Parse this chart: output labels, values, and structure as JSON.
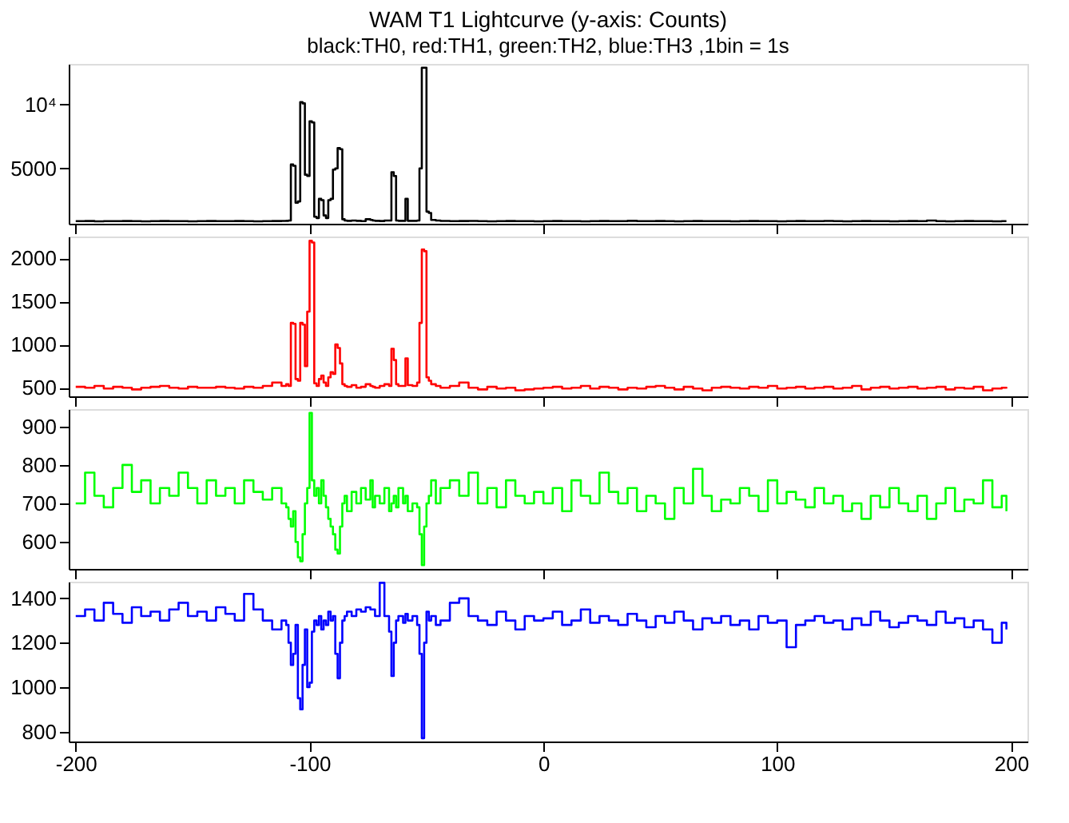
{
  "chart_data": [
    {
      "type": "step",
      "title": "WAM T1 Lightcurve (y-axis: Counts)",
      "subtitle": "black:TH0, red:TH1, green:TH2, blue:TH3 ,1bin = 1s",
      "tick_labels": "y",
      "grid": false,
      "xlim": [
        -203,
        207
      ],
      "xticks": [
        -200,
        -100,
        0,
        100,
        200
      ],
      "ylim": [
        650,
        13200
      ],
      "yticks": [
        5000,
        {
          "value": 10000,
          "label": "10⁴"
        }
      ],
      "x": [
        -200,
        -196,
        -192,
        -188,
        -184,
        -180,
        -176,
        -172,
        -168,
        -164,
        -160,
        -156,
        -152,
        -148,
        -144,
        -140,
        -136,
        -132,
        -128,
        -124,
        -120,
        -116,
        -112,
        -110,
        -109,
        -108,
        -107,
        -106,
        -105,
        -104,
        -103,
        -102,
        -101,
        -100,
        -99,
        -98,
        -97,
        -96,
        -95,
        -94,
        -93,
        -92,
        -91,
        -90,
        -89,
        -88,
        -87,
        -86,
        -85,
        -84,
        -82,
        -80,
        -78,
        -76,
        -74,
        -73,
        -72,
        -70,
        -68,
        -66,
        -65,
        -64,
        -63,
        -62,
        -60,
        -59,
        -58,
        -56,
        -54,
        -53,
        -52,
        -51,
        -50,
        -49,
        -48,
        -46,
        -44,
        -40,
        -36,
        -32,
        -28,
        -24,
        -20,
        -16,
        -12,
        -8,
        -4,
        0,
        4,
        8,
        12,
        16,
        20,
        24,
        28,
        32,
        36,
        40,
        44,
        48,
        52,
        56,
        60,
        64,
        68,
        72,
        76,
        80,
        84,
        88,
        92,
        96,
        100,
        104,
        108,
        112,
        116,
        120,
        124,
        128,
        132,
        136,
        140,
        144,
        148,
        152,
        156,
        160,
        164,
        168,
        172,
        176,
        180,
        184,
        188,
        192,
        196,
        198
      ],
      "series": [
        {
          "color": "#000000",
          "values": [
            850,
            860,
            840,
            850,
            850,
            860,
            850,
            840,
            850,
            860,
            850,
            850,
            840,
            850,
            860,
            850,
            850,
            860,
            850,
            840,
            850,
            860,
            870,
            880,
            900,
            5300,
            5200,
            2300,
            2400,
            10200,
            10100,
            4500,
            4400,
            8700,
            8600,
            1200,
            1100,
            2600,
            2500,
            1300,
            1100,
            2500,
            2600,
            4900,
            5000,
            6600,
            6500,
            1000,
            900,
            880,
            900,
            880,
            850,
            1000,
            950,
            900,
            880,
            860,
            900,
            900,
            4700,
            4400,
            900,
            880,
            880,
            2600,
            880,
            880,
            900,
            5000,
            12900,
            12900,
            1600,
            1500,
            950,
            900,
            870,
            850,
            860,
            870,
            850,
            840,
            850,
            860,
            850,
            850,
            840,
            850,
            860,
            850,
            850,
            840,
            850,
            860,
            850,
            850,
            880,
            850,
            850,
            860,
            850,
            840,
            850,
            860,
            850,
            850,
            850,
            840,
            850,
            860,
            850,
            850,
            840,
            850,
            860,
            850,
            850,
            870,
            850,
            840,
            850,
            860,
            850,
            850,
            840,
            850,
            860,
            850,
            900,
            850,
            840,
            850,
            860,
            850,
            850,
            840,
            850,
            850
          ]
        }
      ]
    },
    {
      "type": "step",
      "tick_labels": "y",
      "grid": false,
      "xlim": [
        -203,
        207
      ],
      "xticks": [
        -200,
        -100,
        0,
        100,
        200
      ],
      "ylim": [
        400,
        2250
      ],
      "yticks": [
        500,
        1000,
        1500,
        2000
      ],
      "x": [
        -200,
        -196,
        -192,
        -188,
        -184,
        -180,
        -176,
        -172,
        -168,
        -164,
        -160,
        -156,
        -152,
        -148,
        -144,
        -140,
        -136,
        -132,
        -128,
        -124,
        -120,
        -116,
        -112,
        -110,
        -109,
        -108,
        -107,
        -106,
        -105,
        -104,
        -103,
        -102,
        -101,
        -100,
        -99,
        -98,
        -97,
        -96,
        -95,
        -94,
        -93,
        -92,
        -91,
        -90,
        -89,
        -88,
        -87,
        -86,
        -85,
        -84,
        -82,
        -80,
        -78,
        -76,
        -74,
        -73,
        -72,
        -70,
        -68,
        -66,
        -65,
        -64,
        -63,
        -62,
        -60,
        -59,
        -58,
        -56,
        -54,
        -53,
        -52,
        -51,
        -50,
        -49,
        -48,
        -46,
        -44,
        -40,
        -36,
        -32,
        -28,
        -24,
        -20,
        -16,
        -12,
        -8,
        -4,
        0,
        4,
        8,
        12,
        16,
        20,
        24,
        28,
        32,
        36,
        40,
        44,
        48,
        52,
        56,
        60,
        64,
        68,
        72,
        76,
        80,
        84,
        88,
        92,
        96,
        100,
        104,
        108,
        112,
        116,
        120,
        124,
        128,
        132,
        136,
        140,
        144,
        148,
        152,
        156,
        160,
        164,
        168,
        172,
        176,
        180,
        184,
        188,
        192,
        196,
        198
      ],
      "series": [
        {
          "color": "#ff0000",
          "values": [
            510,
            500,
            520,
            490,
            510,
            500,
            480,
            500,
            510,
            520,
            500,
            490,
            510,
            500,
            500,
            510,
            500,
            490,
            510,
            500,
            520,
            560,
            520,
            540,
            520,
            1250,
            1240,
            600,
            580,
            1250,
            1230,
            750,
            1380,
            2200,
            2180,
            550,
            520,
            600,
            640,
            560,
            520,
            620,
            680,
            660,
            1000,
            960,
            780,
            540,
            520,
            510,
            530,
            500,
            510,
            540,
            520,
            510,
            500,
            520,
            540,
            520,
            950,
            820,
            540,
            520,
            520,
            840,
            530,
            520,
            560,
            1250,
            2100,
            2080,
            620,
            580,
            540,
            520,
            500,
            520,
            560,
            500,
            480,
            510,
            490,
            500,
            470,
            480,
            490,
            500,
            510,
            490,
            500,
            520,
            490,
            510,
            500,
            480,
            500,
            490,
            510,
            520,
            500,
            480,
            510,
            490,
            470,
            500,
            510,
            500,
            490,
            510,
            500,
            520,
            490,
            500,
            510,
            490,
            500,
            510,
            490,
            500,
            520,
            480,
            500,
            510,
            490,
            500,
            510,
            490,
            500,
            510,
            480,
            500,
            490,
            510,
            470,
            490,
            500,
            490
          ]
        }
      ]
    },
    {
      "type": "step",
      "tick_labels": "y",
      "grid": false,
      "xlim": [
        -203,
        207
      ],
      "xticks": [
        -200,
        -100,
        0,
        100,
        200
      ],
      "ylim": [
        530,
        945
      ],
      "yticks": [
        600,
        700,
        800,
        900
      ],
      "x": [
        -200,
        -196,
        -192,
        -188,
        -184,
        -180,
        -176,
        -172,
        -168,
        -164,
        -160,
        -156,
        -152,
        -148,
        -144,
        -140,
        -136,
        -132,
        -128,
        -124,
        -120,
        -116,
        -112,
        -110,
        -109,
        -108,
        -107,
        -106,
        -105,
        -104,
        -103,
        -102,
        -101,
        -100,
        -99,
        -98,
        -97,
        -96,
        -95,
        -94,
        -93,
        -92,
        -91,
        -90,
        -89,
        -88,
        -87,
        -86,
        -85,
        -84,
        -82,
        -80,
        -78,
        -76,
        -74,
        -73,
        -72,
        -70,
        -68,
        -66,
        -65,
        -64,
        -63,
        -62,
        -60,
        -59,
        -58,
        -56,
        -54,
        -53,
        -52,
        -51,
        -50,
        -49,
        -48,
        -46,
        -44,
        -40,
        -36,
        -32,
        -28,
        -24,
        -20,
        -16,
        -12,
        -8,
        -4,
        0,
        4,
        8,
        12,
        16,
        20,
        24,
        28,
        32,
        36,
        40,
        44,
        48,
        52,
        56,
        60,
        64,
        68,
        72,
        76,
        80,
        84,
        88,
        92,
        96,
        100,
        104,
        108,
        112,
        116,
        120,
        124,
        128,
        132,
        136,
        140,
        144,
        148,
        152,
        156,
        160,
        164,
        168,
        172,
        176,
        180,
        184,
        188,
        192,
        196,
        198
      ],
      "series": [
        {
          "color": "#00ff00",
          "values": [
            700,
            780,
            720,
            690,
            740,
            800,
            730,
            760,
            700,
            740,
            720,
            780,
            740,
            700,
            760,
            720,
            740,
            700,
            760,
            730,
            710,
            740,
            700,
            690,
            660,
            640,
            680,
            600,
            560,
            550,
            620,
            700,
            740,
            935,
            760,
            720,
            740,
            700,
            760,
            720,
            690,
            660,
            640,
            620,
            580,
            570,
            640,
            700,
            720,
            680,
            730,
            700,
            740,
            710,
            760,
            690,
            720,
            700,
            740,
            680,
            700,
            720,
            690,
            740,
            700,
            720,
            680,
            700,
            690,
            620,
            540,
            640,
            700,
            720,
            760,
            700,
            740,
            760,
            720,
            780,
            700,
            740,
            690,
            760,
            720,
            700,
            730,
            700,
            740,
            680,
            760,
            720,
            700,
            780,
            730,
            700,
            740,
            680,
            720,
            700,
            660,
            740,
            700,
            790,
            720,
            680,
            710,
            700,
            740,
            720,
            680,
            760,
            700,
            730,
            710,
            690,
            740,
            700,
            720,
            680,
            700,
            660,
            720,
            690,
            740,
            700,
            680,
            720,
            660,
            700,
            740,
            680,
            710,
            700,
            760,
            690,
            720,
            680
          ]
        }
      ]
    },
    {
      "type": "step",
      "grid": false,
      "xlim": [
        -203,
        207
      ],
      "xticks": [
        -200,
        -100,
        0,
        100,
        200
      ],
      "ylim": [
        755,
        1475
      ],
      "yticks": [
        800,
        1000,
        1200,
        1400
      ],
      "x": [
        -200,
        -196,
        -192,
        -188,
        -184,
        -180,
        -176,
        -172,
        -168,
        -164,
        -160,
        -156,
        -152,
        -148,
        -144,
        -140,
        -136,
        -132,
        -128,
        -124,
        -120,
        -116,
        -112,
        -110,
        -109,
        -108,
        -107,
        -106,
        -105,
        -104,
        -103,
        -102,
        -101,
        -100,
        -99,
        -98,
        -97,
        -96,
        -95,
        -94,
        -93,
        -92,
        -91,
        -90,
        -89,
        -88,
        -87,
        -86,
        -85,
        -84,
        -82,
        -80,
        -78,
        -76,
        -74,
        -73,
        -72,
        -70,
        -68,
        -66,
        -65,
        -64,
        -63,
        -62,
        -60,
        -59,
        -58,
        -56,
        -54,
        -53,
        -52,
        -51,
        -50,
        -49,
        -48,
        -46,
        -44,
        -40,
        -36,
        -32,
        -28,
        -24,
        -20,
        -16,
        -12,
        -8,
        -4,
        0,
        4,
        8,
        12,
        16,
        20,
        24,
        28,
        32,
        36,
        40,
        44,
        48,
        52,
        56,
        60,
        64,
        68,
        72,
        76,
        80,
        84,
        88,
        92,
        96,
        100,
        104,
        108,
        112,
        116,
        120,
        124,
        128,
        132,
        136,
        140,
        144,
        148,
        152,
        156,
        160,
        164,
        168,
        172,
        176,
        180,
        184,
        188,
        192,
        196,
        198
      ],
      "series": [
        {
          "color": "#0000ff",
          "values": [
            1320,
            1350,
            1300,
            1380,
            1330,
            1290,
            1360,
            1320,
            1340,
            1300,
            1350,
            1380,
            1320,
            1340,
            1300,
            1360,
            1330,
            1300,
            1420,
            1350,
            1300,
            1260,
            1300,
            1280,
            1200,
            1100,
            1150,
            1280,
            950,
            900,
            1100,
            1260,
            1000,
            1020,
            1250,
            1300,
            1280,
            1320,
            1260,
            1300,
            1280,
            1340,
            1300,
            1320,
            1150,
            1040,
            1200,
            1300,
            1320,
            1340,
            1320,
            1350,
            1340,
            1360,
            1350,
            1350,
            1320,
            1470,
            1320,
            1250,
            1050,
            1200,
            1300,
            1320,
            1290,
            1330,
            1300,
            1320,
            1280,
            1150,
            770,
            1200,
            1340,
            1300,
            1320,
            1280,
            1300,
            1380,
            1400,
            1320,
            1300,
            1280,
            1340,
            1300,
            1260,
            1320,
            1300,
            1310,
            1340,
            1280,
            1300,
            1350,
            1290,
            1320,
            1300,
            1280,
            1330,
            1300,
            1270,
            1320,
            1290,
            1340,
            1300,
            1260,
            1310,
            1290,
            1320,
            1280,
            1300,
            1260,
            1320,
            1290,
            1300,
            1180,
            1280,
            1300,
            1320,
            1290,
            1300,
            1260,
            1310,
            1280,
            1340,
            1300,
            1270,
            1290,
            1320,
            1300,
            1280,
            1340,
            1290,
            1310,
            1270,
            1300,
            1260,
            1200,
            1290,
            1260
          ]
        }
      ]
    }
  ]
}
